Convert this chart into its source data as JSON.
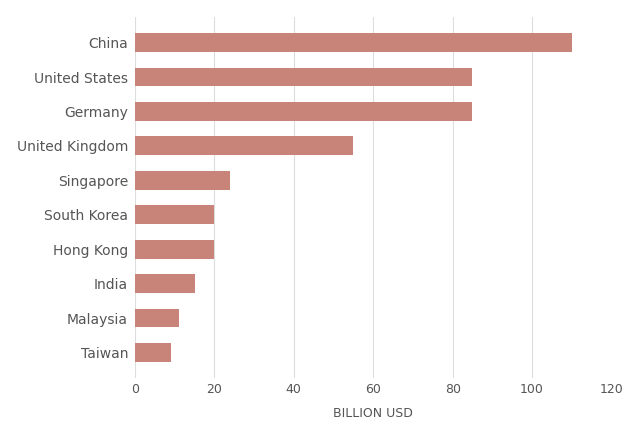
{
  "countries": [
    "China",
    "United States",
    "Germany",
    "United Kingdom",
    "Singapore",
    "South Korea",
    "Hong Kong",
    "India",
    "Malaysia",
    "Taiwan"
  ],
  "values": [
    110,
    85,
    85,
    55,
    24,
    20,
    20,
    15,
    11,
    9
  ],
  "bar_color": "#c9847a",
  "xlabel": "BILLION USD",
  "xlim": [
    0,
    120
  ],
  "xticks": [
    0,
    20,
    40,
    60,
    80,
    100,
    120
  ],
  "background_color": "#ffffff",
  "grid_color": "#dddddd",
  "xlabel_fontsize": 9,
  "label_fontsize": 10,
  "tick_fontsize": 9,
  "bar_height": 0.55
}
